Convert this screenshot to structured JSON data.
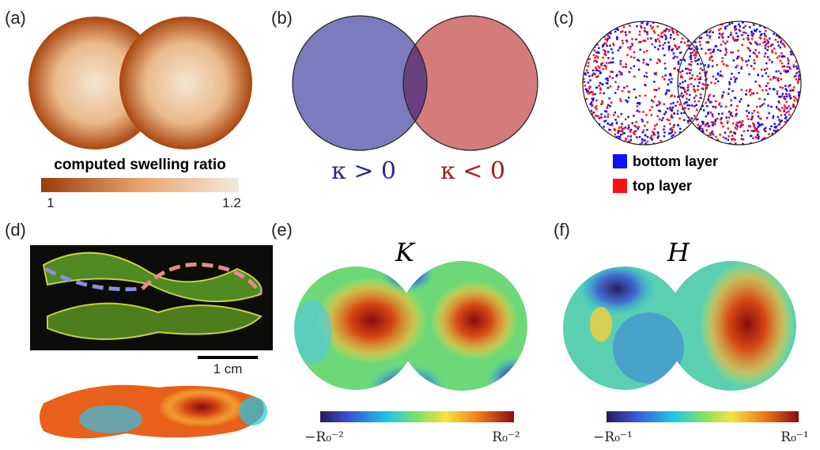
{
  "panels": [
    {
      "label": "(a)",
      "colorbar": {
        "title": "computed swelling ratio",
        "min_label": "1",
        "max_label": "1.2"
      }
    },
    {
      "label": "(b)",
      "texts": [
        "κ > 0",
        "κ < 0"
      ]
    },
    {
      "label": "(c)",
      "legend": [
        "bottom layer",
        "top layer"
      ]
    },
    {
      "label": "(d)",
      "scale_bar": "1 cm"
    },
    {
      "label": "(e)",
      "title": "K",
      "colorbar": {
        "min_label": "−R₀⁻²",
        "max_label": "R₀⁻²"
      }
    },
    {
      "label": "(f)",
      "title": "H",
      "colorbar": {
        "min_label": "−R₀⁻¹",
        "max_label": "R₀⁻¹"
      }
    }
  ]
}
